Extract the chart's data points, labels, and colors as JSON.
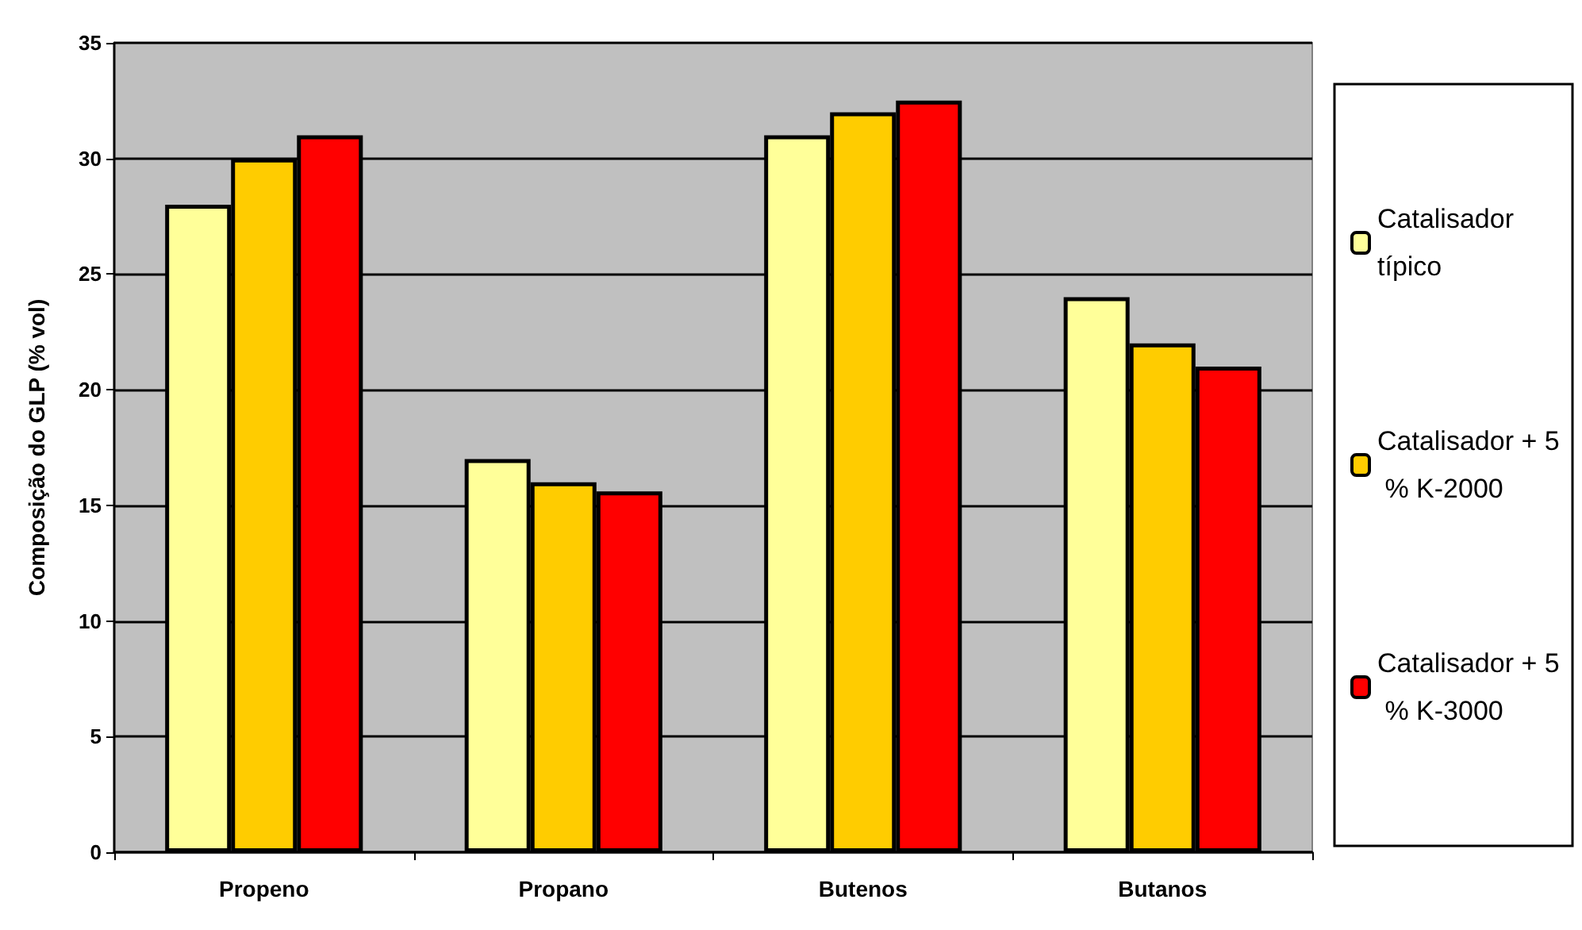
{
  "chart_data": {
    "type": "bar",
    "ylabel": "Composição do GLP (% vol)",
    "categories": [
      "Propeno",
      "Propano",
      "Butenos",
      "Butanos"
    ],
    "series": [
      {
        "name": "Catalisador típico",
        "color": "#ffff99",
        "values": [
          28,
          17,
          31,
          24
        ]
      },
      {
        "name": "Catalisador + 5 % K-2000",
        "color": "#ffcc00",
        "values": [
          30,
          16,
          32,
          22
        ]
      },
      {
        "name": "Catalisador + 5 % K-3000",
        "color": "#ff0000",
        "values": [
          31,
          15.6,
          32.5,
          21
        ]
      }
    ],
    "ylim": [
      0,
      35
    ],
    "yticks": [
      0,
      5,
      10,
      15,
      20,
      25,
      30,
      35
    ],
    "grid": "y",
    "legend": "right"
  }
}
